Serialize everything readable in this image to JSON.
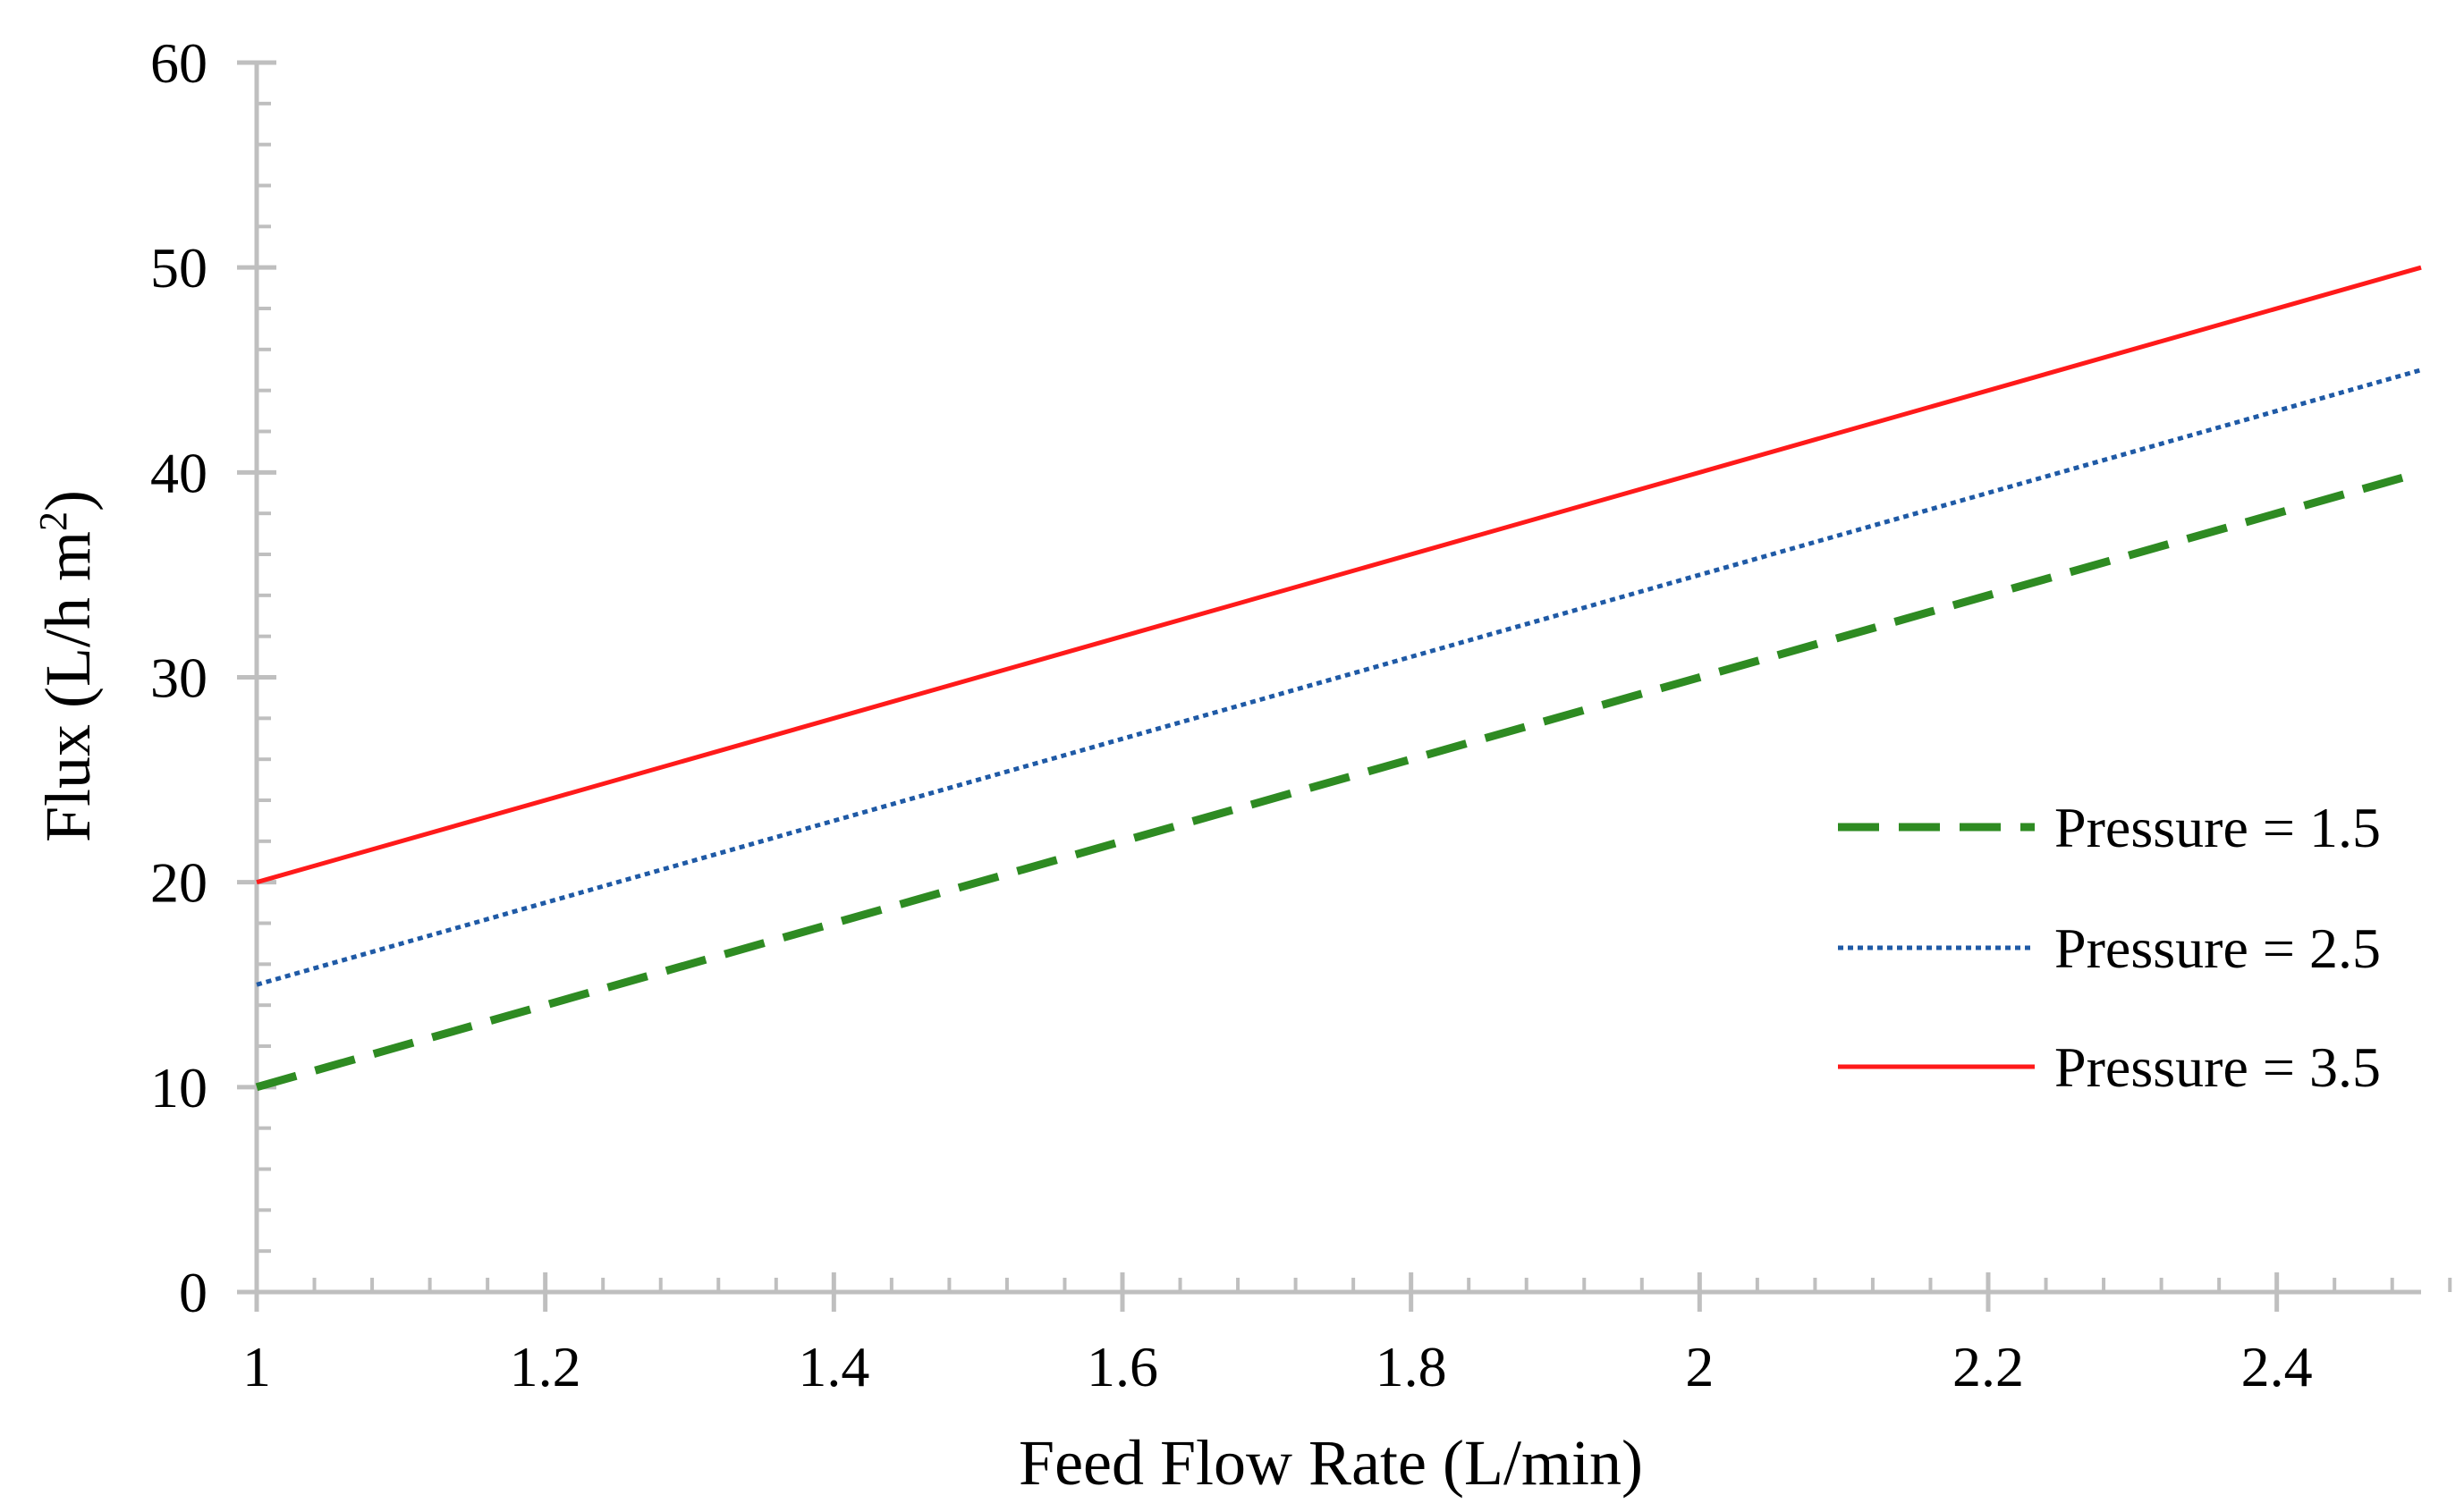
{
  "chart_data": {
    "type": "line",
    "title": "",
    "xlabel": "Feed Flow Rate (L/min)",
    "ylabel_main": "Flux (L/h m",
    "ylabel_sup": "2",
    "ylabel_close": ")",
    "xlim": [
      1,
      2.5
    ],
    "ylim": [
      0,
      60
    ],
    "x_ticks": [
      1,
      1.2,
      1.4,
      1.6,
      1.8,
      2,
      2.2,
      2.4
    ],
    "x_tick_labels": [
      "1",
      "1.2",
      "1.4",
      "1.6",
      "1.8",
      "2",
      "2.2",
      "2.4"
    ],
    "y_ticks": [
      0,
      10,
      20,
      30,
      40,
      50,
      60
    ],
    "y_tick_labels": [
      "0",
      "10",
      "20",
      "30",
      "40",
      "50",
      "60"
    ],
    "x_minor_step": 0.04,
    "y_minor_step": 2,
    "grid": false,
    "legend_position": "right",
    "series": [
      {
        "name": "Pressure = 1.5",
        "color": "#2e8b22",
        "style": "dashed",
        "x": [
          1,
          2.5
        ],
        "y": [
          10,
          40
        ]
      },
      {
        "name": "Pressure = 2.5",
        "color": "#1f5aa6",
        "style": "dotted",
        "x": [
          1,
          2.5
        ],
        "y": [
          15,
          45
        ]
      },
      {
        "name": "Pressure = 3.5",
        "color": "#ff1a1a",
        "style": "solid",
        "x": [
          1,
          2.5
        ],
        "y": [
          20,
          50
        ]
      }
    ]
  },
  "colors": {
    "axis": "#bfbfbf",
    "text": "#000000"
  }
}
